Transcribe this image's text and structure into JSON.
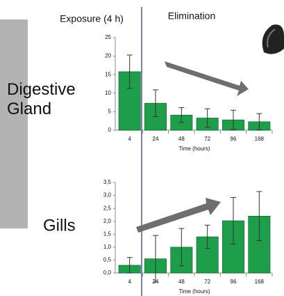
{
  "phases": {
    "exposure": "Exposure (4 h)",
    "elimination": "Elimination"
  },
  "chart_data": [
    {
      "type": "bar",
      "title": "Digestive Gland",
      "xlabel": "Time (hours)",
      "categories": [
        "4",
        "24",
        "48",
        "72",
        "96",
        "168"
      ],
      "values": [
        15.8,
        7.3,
        4.1,
        3.3,
        2.8,
        2.3
      ],
      "errors": [
        4.5,
        3.6,
        2.0,
        2.5,
        2.6,
        2.2
      ],
      "color": "#1e9e4a",
      "ylim": [
        0,
        25
      ],
      "yticks": [
        0,
        5,
        10,
        15,
        20,
        25
      ]
    },
    {
      "type": "bar",
      "title": "Gills",
      "xlabel": "Time (hours)",
      "categories": [
        "4",
        "24",
        "48",
        "72",
        "96",
        "168"
      ],
      "values": [
        0.3,
        0.55,
        1.0,
        1.4,
        2.02,
        2.2
      ],
      "errors": [
        0.3,
        0.9,
        0.72,
        0.45,
        0.9,
        0.95
      ],
      "color": "#1e9e4a",
      "ylim": [
        0,
        3.5
      ],
      "yticks": [
        {
          "value": 0,
          "label": "0,0"
        },
        {
          "value": 0.5,
          "label": "0,5"
        },
        {
          "value": 1,
          "label": "1,0"
        },
        {
          "value": 1.5,
          "label": "1,5"
        },
        {
          "value": 2,
          "label": "2,0"
        },
        {
          "value": 2.5,
          "label": "2,5"
        },
        {
          "value": 3,
          "label": "3,0"
        },
        {
          "value": 3.5,
          "label": "3,5"
        }
      ]
    }
  ]
}
